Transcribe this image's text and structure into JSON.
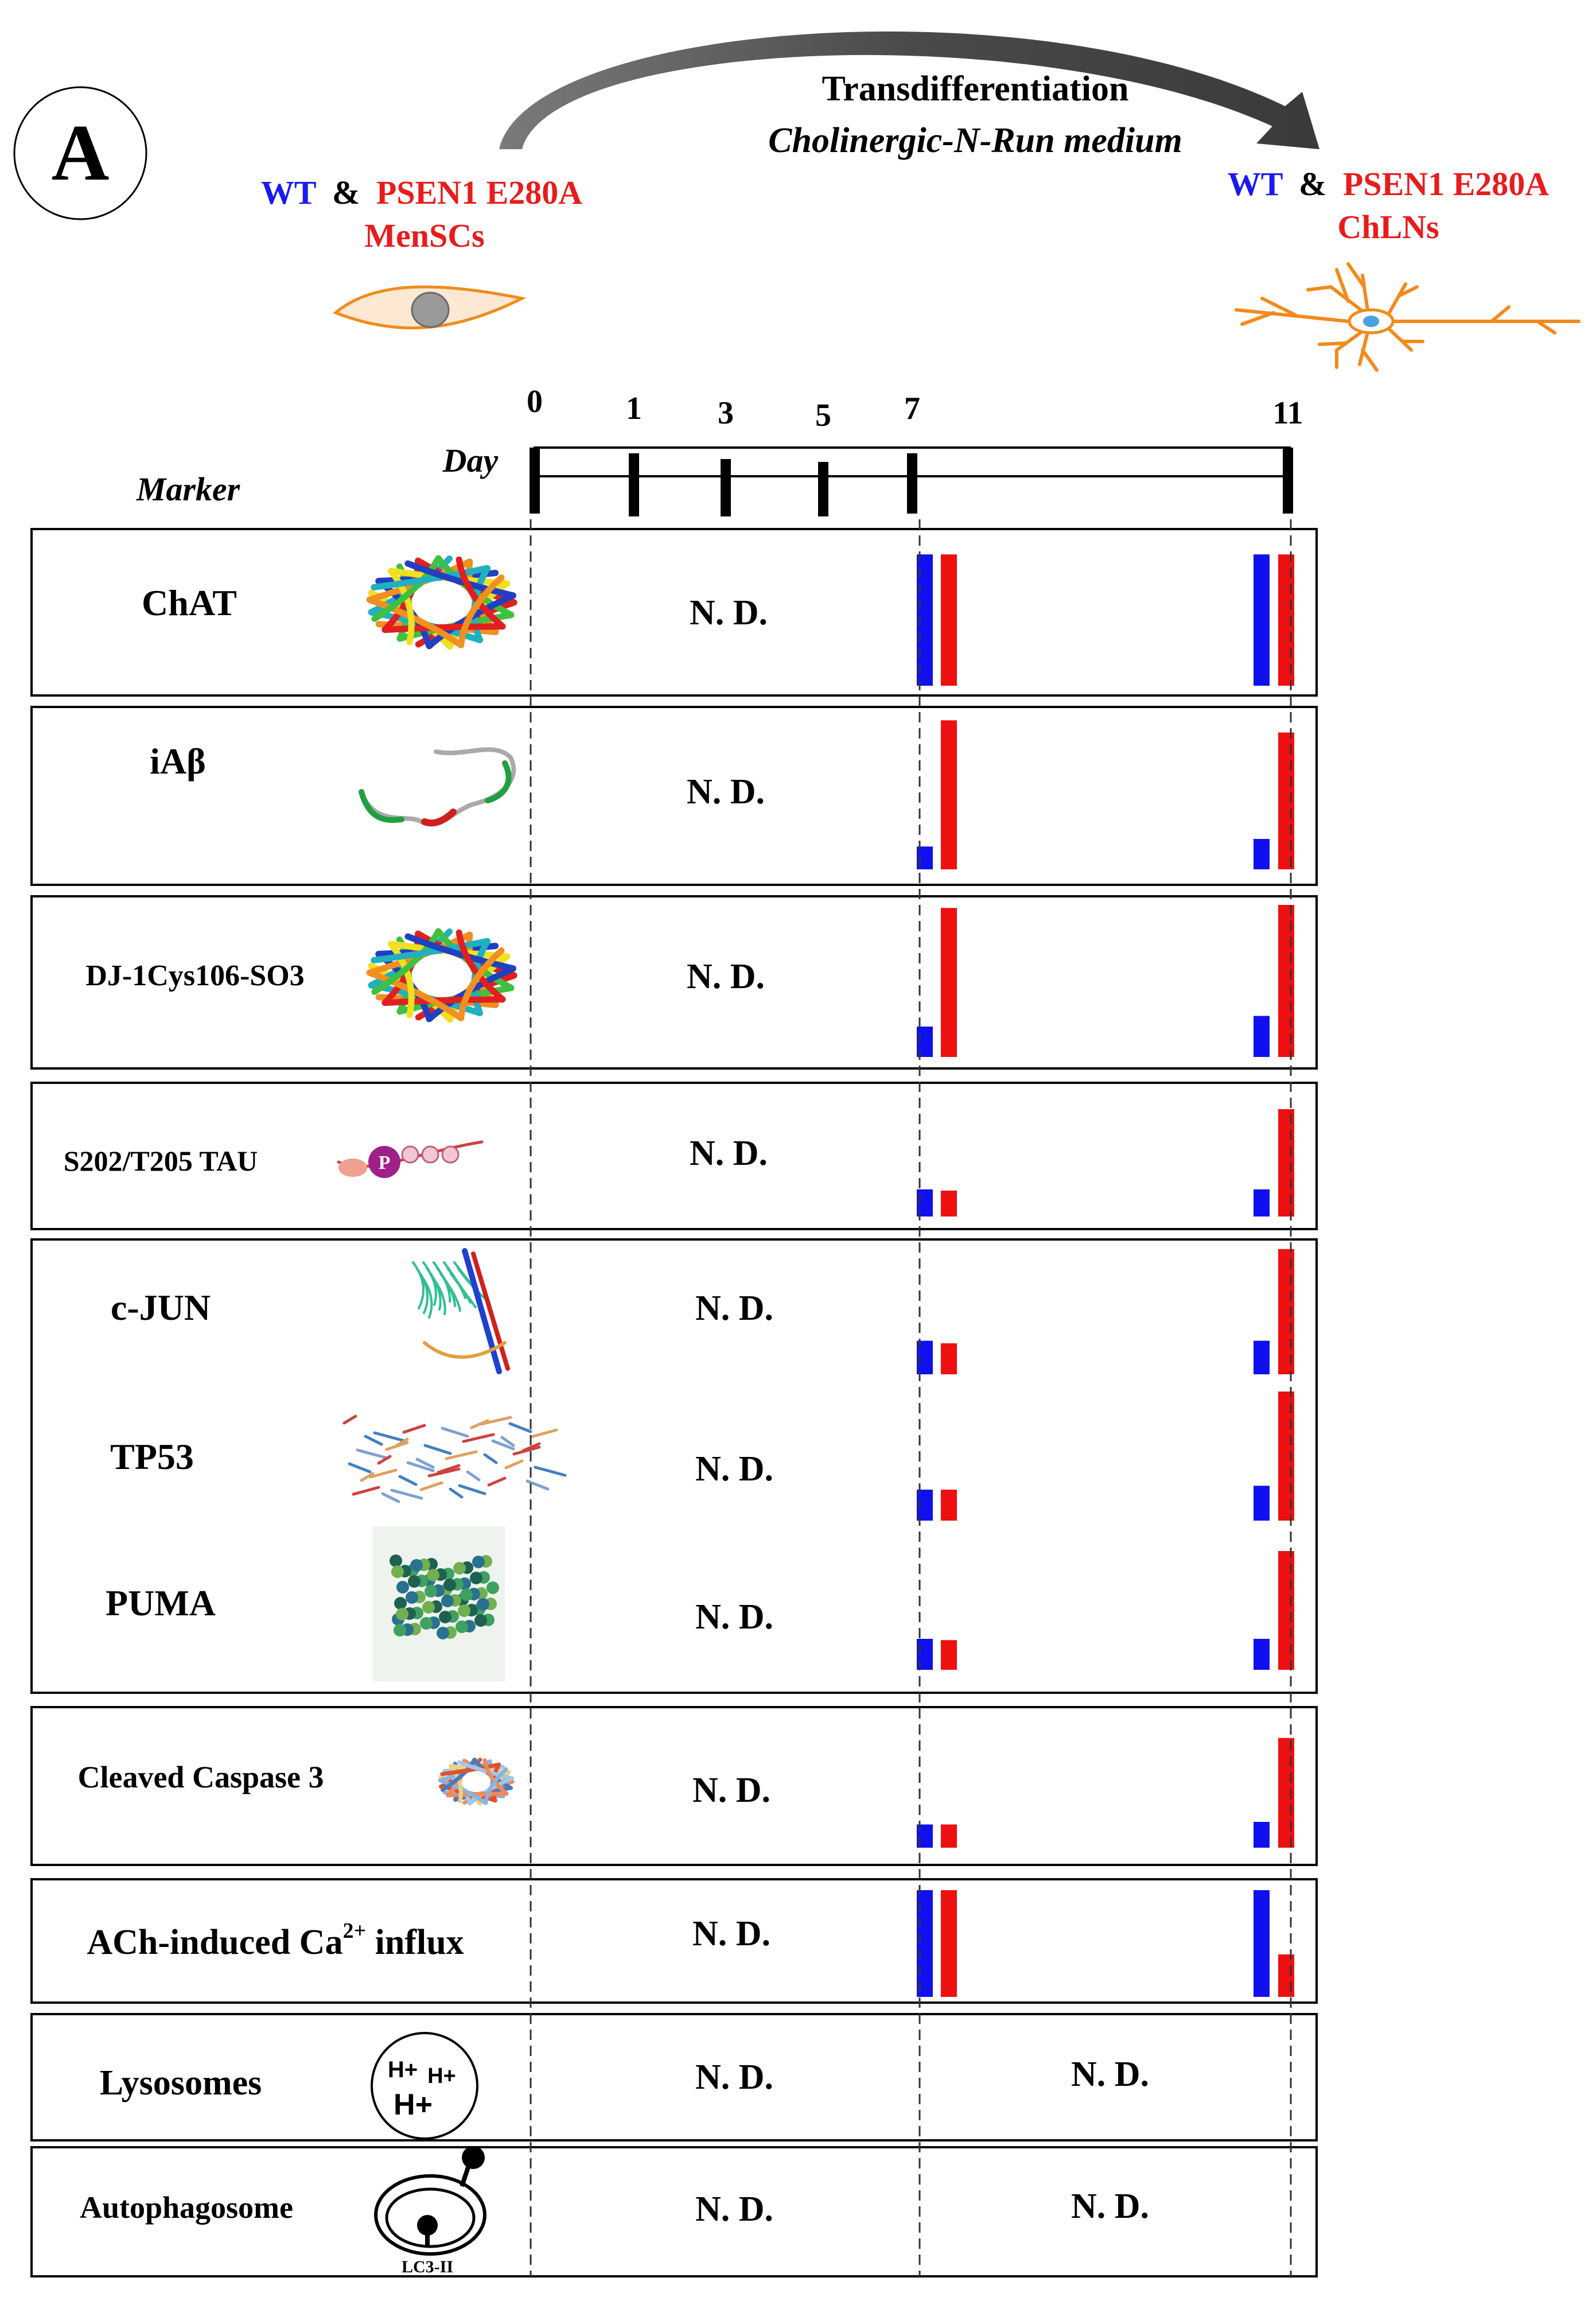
{
  "panel_label": "A",
  "header": {
    "arrow_title": "Transdifferentiation",
    "arrow_subtitle": "Cholinergic-N-Run medium",
    "left": {
      "wt": "WT",
      "amp": "&",
      "mut": "PSEN1 E280A",
      "cell": "MenSCs"
    },
    "right": {
      "wt": "WT",
      "amp": "&",
      "mut": "PSEN1 E280A",
      "cell": "ChLNs"
    }
  },
  "timeline": {
    "label_day": "Day",
    "label_marker": "Marker",
    "days": [
      "0",
      "1",
      "3",
      "5",
      "7",
      "11"
    ]
  },
  "colors": {
    "wt": "#1010ee",
    "mut": "#ee1010",
    "text_mut": "#e81c1c",
    "text_wt": "#1a1af0",
    "neuron": "#f28a1c",
    "cell": "#f28a1c"
  },
  "not_detected": "N.  D.",
  "markers": [
    {
      "name": "ChAT",
      "icon": "chat-structure-icon",
      "day7": {
        "wt": 0.88,
        "mut": 0.88
      },
      "day11": {
        "wt": 0.88,
        "mut": 0.88
      }
    },
    {
      "name": "iAβ",
      "icon": "abeta-structure-icon",
      "day7": {
        "wt": 0.15,
        "mut": 0.98
      },
      "day11": {
        "wt": 0.2,
        "mut": 0.9
      }
    },
    {
      "name": "DJ-1Cys106-SO3",
      "icon": "dj1-structure-icon",
      "day7": {
        "wt": 0.2,
        "mut": 0.98
      },
      "day11": {
        "wt": 0.27,
        "mut": 1.0
      }
    },
    {
      "name": "S202/T205 TAU",
      "icon": "tau-phospho-icon",
      "day7": {
        "wt": 0.22,
        "mut": 0.21
      },
      "day11": {
        "wt": 0.22,
        "mut": 0.87
      }
    },
    {
      "name": "c-JUN",
      "icon": "cjun-structure-icon",
      "day7": {
        "wt": 0.26,
        "mut": 0.24
      },
      "day11": {
        "wt": 0.26,
        "mut": 0.97
      }
    },
    {
      "name": "TP53",
      "icon": "tp53-structure-icon",
      "day7": {
        "wt": 0.24,
        "mut": 0.24
      },
      "day11": {
        "wt": 0.27,
        "mut": 1.0
      }
    },
    {
      "name": "PUMA",
      "icon": "puma-structure-icon",
      "day7": {
        "wt": 0.24,
        "mut": 0.23
      },
      "day11": {
        "wt": 0.24,
        "mut": 0.92
      }
    },
    {
      "name": "Cleaved Caspase 3",
      "icon": "caspase3-structure-icon",
      "day7": {
        "wt": 0.18,
        "mut": 0.18
      },
      "day11": {
        "wt": 0.2,
        "mut": 0.85
      }
    },
    {
      "name": "ACh-induced  Ca",
      "name_sup": "2+",
      "name_after": " influx",
      "icon": "calcium-icon",
      "day7": {
        "wt": 0.93,
        "mut": 0.93
      },
      "day11": {
        "wt": 0.93,
        "mut": 0.37
      }
    },
    {
      "name": "Lysosomes",
      "icon": "lysosome-icon",
      "lyso_h": [
        "H+",
        "H+",
        "H+"
      ],
      "day7": null,
      "day11": null
    },
    {
      "name": "Autophagosome",
      "icon": "autophagosome-icon",
      "icon_label": "LC3-II",
      "day7": null,
      "day11": null
    }
  ]
}
